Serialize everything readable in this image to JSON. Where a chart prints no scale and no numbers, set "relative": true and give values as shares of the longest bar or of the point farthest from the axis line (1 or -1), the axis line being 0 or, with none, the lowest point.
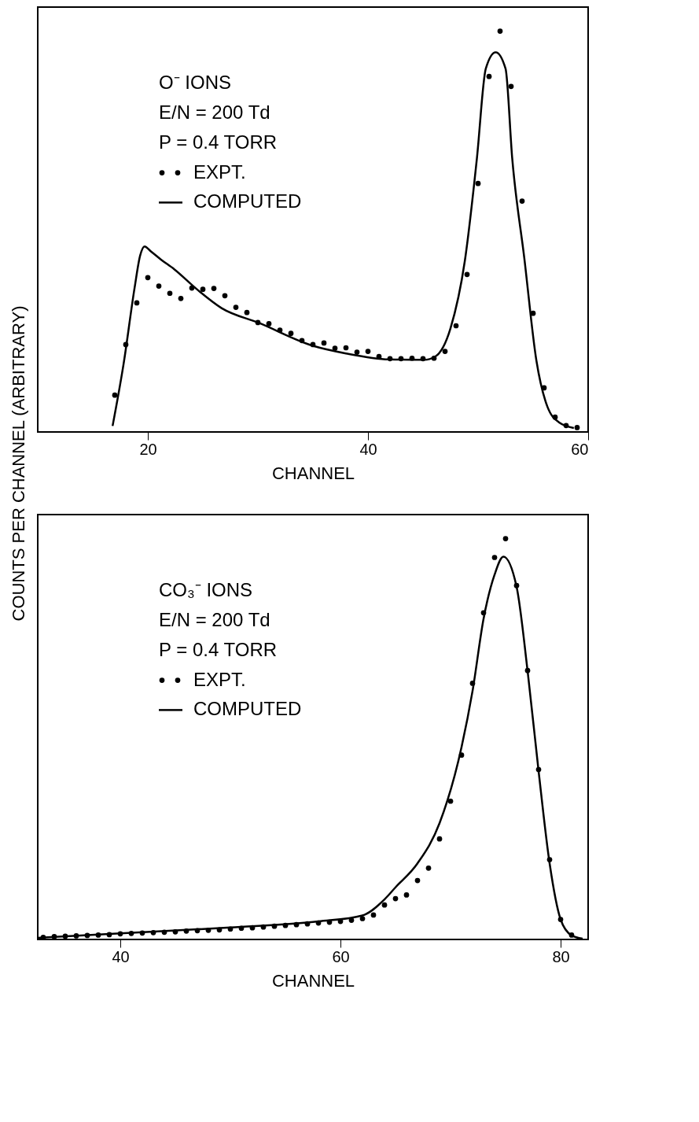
{
  "chart_data": [
    {
      "type": "scatter",
      "relative": true,
      "xlabel": "CHANNEL",
      "ylabel": "COUNTS PER CHANNEL (ARBITRARY)",
      "xlim": [
        10,
        60
      ],
      "xticks": [
        20,
        40,
        60
      ],
      "grid": false,
      "legend": "top left",
      "annotations": [
        "O⁻ IONS",
        "E/N = 200 Td",
        "P = 0.4 TORR"
      ],
      "series": [
        {
          "name": "EXPT.",
          "color": "#000000",
          "x": [
            17,
            18,
            19,
            20,
            21,
            22,
            23,
            24,
            25,
            26,
            27,
            28,
            29,
            30,
            31,
            32,
            33,
            34,
            35,
            36,
            37,
            38,
            39,
            40,
            41,
            42,
            43,
            44,
            45,
            46,
            47,
            48,
            49,
            50,
            51,
            52,
            53,
            54,
            55,
            56,
            57,
            58,
            59
          ],
          "values": [
            0.092,
            0.218,
            0.322,
            0.385,
            0.364,
            0.346,
            0.333,
            0.359,
            0.356,
            0.358,
            0.34,
            0.311,
            0.298,
            0.273,
            0.27,
            0.254,
            0.246,
            0.228,
            0.218,
            0.222,
            0.209,
            0.21,
            0.199,
            0.201,
            0.188,
            0.183,
            0.183,
            0.184,
            0.183,
            0.184,
            0.201,
            0.265,
            0.393,
            0.62,
            0.887,
            1,
            0.862,
            0.576,
            0.296,
            0.11,
            0.037,
            0.016,
            0.011
          ]
        },
        {
          "name": "COMPUTED",
          "type": "line",
          "color": "#000000",
          "x": [
            16.8,
            17.8,
            18.8,
            19.3,
            19.7,
            20.3,
            21.2,
            22.4,
            24.5,
            26.7,
            30.1,
            35,
            38,
            41.9,
            45.1,
            46.1,
            47.5,
            48.8,
            49.9,
            50.7,
            51.6,
            52.5,
            53.1,
            54.2,
            55.3,
            56.3,
            57.4,
            58.7
          ],
          "values": [
            0.015,
            0.17,
            0.36,
            0.44,
            0.463,
            0.45,
            0.43,
            0.406,
            0.355,
            0.309,
            0.272,
            0.215,
            0.196,
            0.181,
            0.18,
            0.188,
            0.259,
            0.427,
            0.684,
            0.906,
            0.947,
            0.906,
            0.684,
            0.434,
            0.178,
            0.063,
            0.023,
            0.01
          ]
        }
      ]
    },
    {
      "type": "scatter",
      "relative": true,
      "xlabel": "CHANNEL",
      "xlim": [
        32.5,
        82.5
      ],
      "xticks": [
        40,
        60,
        80
      ],
      "grid": false,
      "legend": "top left",
      "annotations": [
        "CO₃⁻ IONS",
        "E/N = 200 Td",
        "P = 0.4 TORR"
      ],
      "series": [
        {
          "name": "EXPT.",
          "color": "#000000",
          "x": [
            33,
            34,
            35,
            36,
            37,
            38,
            39,
            40,
            41,
            42,
            43,
            44,
            45,
            46,
            47,
            48,
            49,
            50,
            51,
            52,
            53,
            54,
            55,
            56,
            57,
            58,
            59,
            60,
            61,
            62,
            63,
            64,
            65,
            66,
            67,
            68,
            69,
            70,
            71,
            72,
            73,
            74,
            75,
            76,
            77,
            78,
            79,
            80,
            81
          ],
          "values": [
            0.005,
            0.007,
            0.008,
            0.009,
            0.01,
            0.011,
            0.012,
            0.014,
            0.015,
            0.016,
            0.017,
            0.018,
            0.019,
            0.021,
            0.022,
            0.023,
            0.024,
            0.026,
            0.028,
            0.029,
            0.031,
            0.033,
            0.035,
            0.037,
            0.039,
            0.041,
            0.043,
            0.045,
            0.048,
            0.052,
            0.061,
            0.086,
            0.102,
            0.111,
            0.147,
            0.178,
            0.251,
            0.345,
            0.46,
            0.639,
            0.815,
            0.953,
            1,
            0.883,
            0.671,
            0.424,
            0.199,
            0.05,
            0.011
          ]
        },
        {
          "name": "COMPUTED",
          "type": "line",
          "color": "#000000",
          "x": [
            32.5,
            40,
            50,
            58,
            62,
            64,
            65,
            67,
            69,
            71,
            72,
            73,
            74,
            74.8,
            76,
            77,
            78,
            79,
            80,
            81,
            82
          ],
          "values": [
            0.004,
            0.015,
            0.03,
            0.045,
            0.06,
            0.1,
            0.13,
            0.19,
            0.29,
            0.48,
            0.62,
            0.8,
            0.91,
            0.955,
            0.88,
            0.67,
            0.42,
            0.19,
            0.05,
            0.01,
            0.002
          ]
        }
      ]
    }
  ]
}
